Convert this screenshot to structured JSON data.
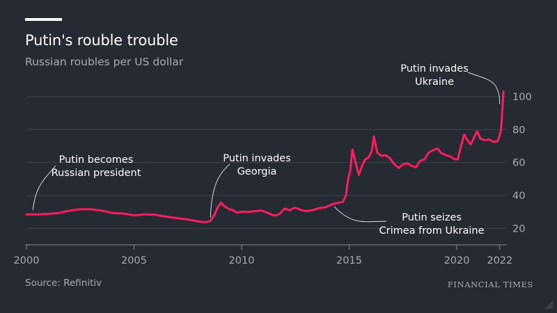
{
  "header": {
    "title": "Putin's rouble trouble",
    "subtitle": "Russian roubles per US dollar"
  },
  "footer": {
    "source": "Source: Refinitiv",
    "brand": "FINANCIAL TIMES"
  },
  "colors": {
    "background": "#262a33",
    "line": "#ff1d5e",
    "grid": "#40444d",
    "muted_text": "#a9acb3",
    "text": "#ffffff"
  },
  "chart_data": {
    "type": "line",
    "title": "Putin's rouble trouble",
    "subtitle": "Russian roubles per US dollar",
    "xlabel": "",
    "ylabel": "",
    "xlim": [
      2000,
      2022.2
    ],
    "ylim": [
      10,
      108
    ],
    "y_axis_position": "right",
    "grid": true,
    "x_ticks": [
      2000,
      2005,
      2010,
      2015,
      2020,
      2022
    ],
    "y_ticks": [
      20,
      40,
      60,
      80,
      100
    ],
    "series": [
      {
        "x": [
          2000.0,
          2000.5,
          2001.0,
          2001.5,
          2002.0,
          2002.5,
          2003.0,
          2003.5,
          2004.0,
          2004.5,
          2005.0,
          2005.5,
          2006.0,
          2006.5,
          2007.0,
          2007.5,
          2008.0,
          2008.3,
          2008.55,
          2008.75,
          2008.9,
          2009.05,
          2009.2,
          2009.4,
          2009.6,
          2009.8,
          2010.0,
          2010.3,
          2010.6,
          2010.9,
          2011.2,
          2011.45,
          2011.6,
          2011.8,
          2012.0,
          2012.25,
          2012.45,
          2012.6,
          2012.8,
          2013.0,
          2013.3,
          2013.6,
          2013.9,
          2014.1,
          2014.3,
          2014.5,
          2014.7,
          2014.85,
          2014.95,
          2015.05,
          2015.15,
          2015.3,
          2015.45,
          2015.6,
          2015.75,
          2015.9,
          2016.05,
          2016.15,
          2016.3,
          2016.5,
          2016.7,
          2016.9,
          2017.1,
          2017.3,
          2017.5,
          2017.7,
          2017.9,
          2018.1,
          2018.3,
          2018.5,
          2018.7,
          2018.9,
          2019.1,
          2019.3,
          2019.5,
          2019.7,
          2019.9,
          2020.05,
          2020.2,
          2020.35,
          2020.5,
          2020.65,
          2020.8,
          2020.95,
          2021.1,
          2021.3,
          2021.5,
          2021.7,
          2021.9,
          2022.0,
          2022.06,
          2022.12,
          2022.17
        ],
        "y": [
          28.5,
          28.5,
          28.8,
          29.3,
          30.8,
          31.6,
          31.6,
          30.8,
          29.3,
          29.0,
          27.9,
          28.5,
          28.2,
          27.1,
          26.2,
          25.4,
          24.2,
          23.7,
          24.5,
          28.5,
          33.0,
          35.6,
          33.5,
          31.8,
          31.0,
          29.5,
          30.1,
          30.0,
          30.4,
          30.9,
          29.5,
          28.0,
          27.8,
          29.2,
          32.0,
          31.0,
          32.5,
          32.0,
          31.0,
          30.5,
          31.0,
          32.3,
          32.8,
          34.0,
          35.0,
          35.5,
          36.0,
          40.0,
          50.0,
          55.0,
          68.0,
          60.0,
          52.5,
          58.0,
          62.0,
          63.0,
          67.0,
          76.0,
          66.0,
          64.0,
          64.5,
          62.5,
          59.0,
          56.7,
          58.8,
          59.5,
          58.0,
          57.0,
          61.0,
          62.0,
          66.0,
          67.5,
          68.5,
          65.5,
          64.5,
          63.7,
          62.0,
          62.0,
          70.0,
          77.0,
          73.5,
          71.0,
          75.0,
          79.0,
          74.5,
          73.5,
          74.0,
          72.5,
          73.0,
          76.5,
          80.0,
          92.0,
          103.0
        ]
      }
    ],
    "annotations": [
      {
        "lines": [
          "Putin becomes",
          "Russian president"
        ],
        "x": 2000.3,
        "y": 29.5
      },
      {
        "lines": [
          "Putin invades",
          "Georgia"
        ],
        "x": 2008.55,
        "y": 25.0
      },
      {
        "lines": [
          "Putin seizes",
          "Crimea from Ukraine"
        ],
        "x": 2014.3,
        "y": 35.0
      },
      {
        "lines": [
          "Putin invades",
          "Ukraine"
        ],
        "x": 2022.06,
        "y": 92.0
      }
    ]
  }
}
